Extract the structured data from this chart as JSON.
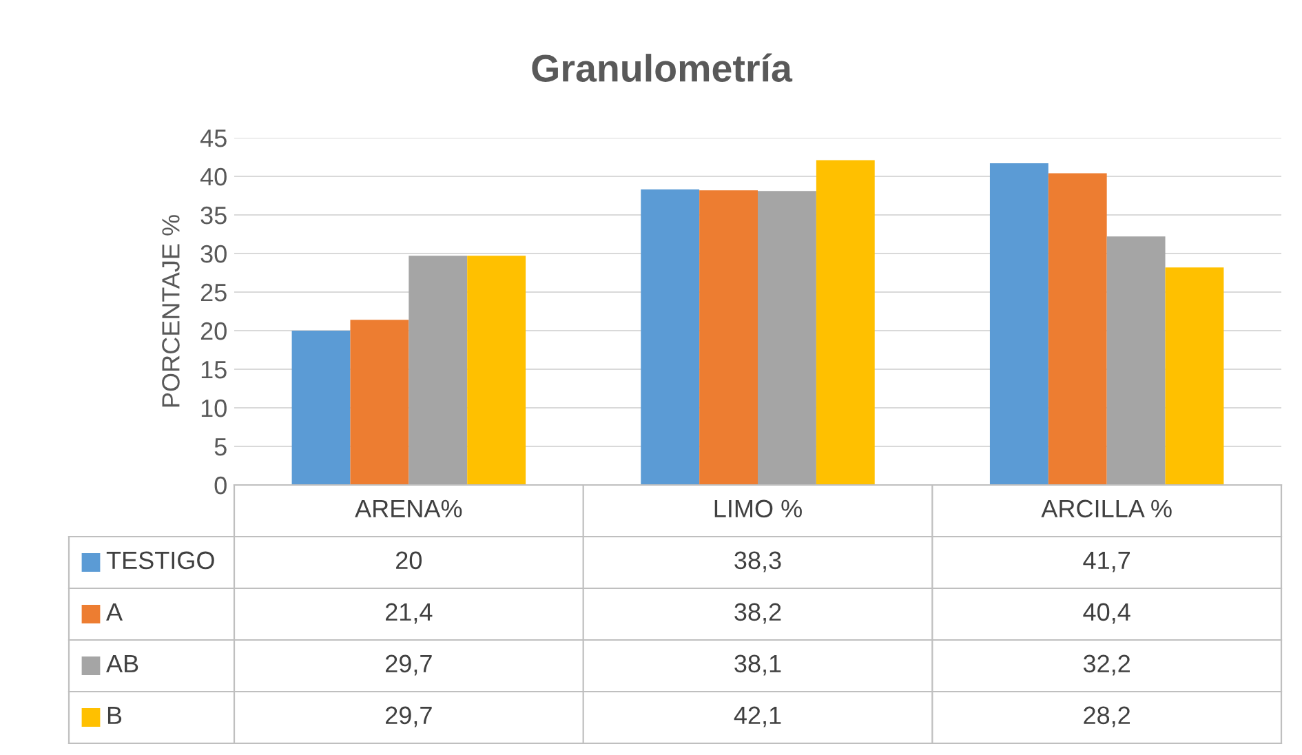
{
  "chart_data": {
    "type": "bar",
    "title": "Granulometría",
    "ylabel": "PORCENTAJE %",
    "categories": [
      "ARENA%",
      "LIMO %",
      "ARCILLA %"
    ],
    "series": [
      {
        "name": "TESTIGO",
        "color": "#5b9bd5",
        "values": [
          20,
          38.3,
          41.7
        ],
        "value_labels": [
          "20",
          "38,3",
          "41,7"
        ]
      },
      {
        "name": "A",
        "color": "#ed7d31",
        "values": [
          21.4,
          38.2,
          40.4
        ],
        "value_labels": [
          "21,4",
          "38,2",
          "40,4"
        ]
      },
      {
        "name": "AB",
        "color": "#a5a5a5",
        "values": [
          29.7,
          38.1,
          32.2
        ],
        "value_labels": [
          "29,7",
          "38,1",
          "32,2"
        ]
      },
      {
        "name": "B",
        "color": "#ffc000",
        "values": [
          29.7,
          42.1,
          28.2
        ],
        "value_labels": [
          "29,7",
          "42,1",
          "28,2"
        ]
      }
    ],
    "ylim": [
      0,
      45
    ],
    "yticks": [
      0,
      5,
      10,
      15,
      20,
      25,
      30,
      35,
      40,
      45
    ],
    "grid": "y",
    "legend": "bottom"
  }
}
